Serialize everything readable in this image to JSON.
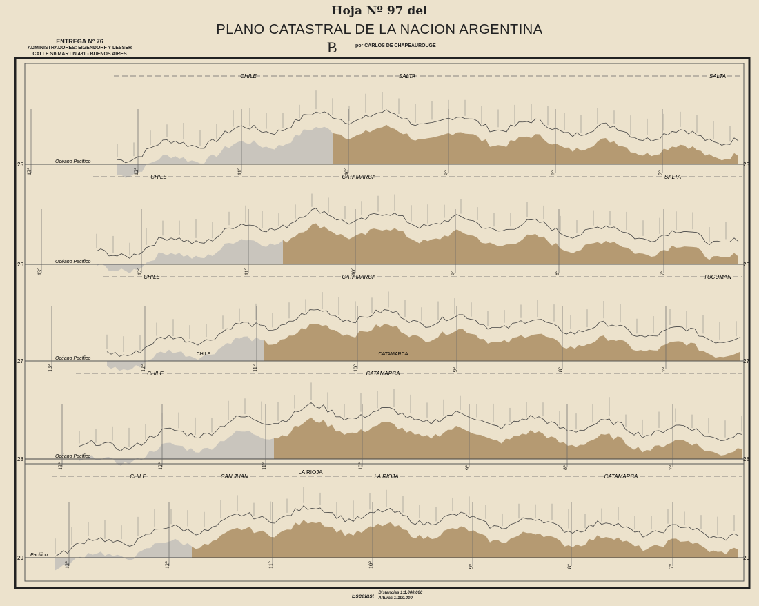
{
  "sheet": {
    "title_line1": "Hoja Nº 97 del",
    "title_line2": "PLANO CATASTRAL DE LA NACION ARGENTINA",
    "series_letter": "B",
    "author": "por CARLOS DE CHAPEAUROUGE",
    "delivery": "ENTREGA Nº 76",
    "administrators": "ADMINISTRADORES: EIGENDORF Y LESSER",
    "address": "CALLE Sn MARTIN 481 - BUENOS AIRES",
    "scale_label": "Escalas:",
    "scale_distances": "Distancias 1:1.000.000",
    "scale_heights": "Alturas 1:100.000"
  },
  "colors": {
    "paper": "#ece2cc",
    "chile": "#c9c5bd",
    "argentina": "#b59a72",
    "ink": "#333333"
  },
  "profiles": [
    {
      "latitude": "25",
      "ocean": "Océano Pacífico",
      "regions": [
        "CHILE",
        "SALTA",
        "SALTA"
      ],
      "longitudes": [
        "13°",
        "12°",
        "11°",
        "10°",
        "9°",
        "8°",
        "7°"
      ]
    },
    {
      "latitude": "26",
      "ocean": "Océano Pacífico",
      "regions": [
        "CHILE",
        "CATAMARCA",
        "SALTA"
      ],
      "longitudes": [
        "13°",
        "12°",
        "11°",
        "10°",
        "9°",
        "8°",
        "7°"
      ]
    },
    {
      "latitude": "27",
      "ocean": "Océano Pacífico",
      "regions": [
        "CHILE",
        "CATAMARCA",
        "TUCUMAN"
      ],
      "inner_labels": [
        "CHILE",
        "CATAMARCA"
      ],
      "longitudes": [
        "13°",
        "12°",
        "11°",
        "10°",
        "9°",
        "8°",
        "7°"
      ]
    },
    {
      "latitude": "28",
      "ocean": "Océano Pacífico",
      "regions": [
        "CHILE",
        "CATAMARCA"
      ],
      "below_label": "LA RIOJA",
      "longitudes": [
        "13°",
        "12°",
        "11°",
        "10°",
        "9°",
        "8°",
        "7°"
      ]
    },
    {
      "latitude": "29",
      "ocean": "Pacífico",
      "regions": [
        "CHILE",
        "SAN JUAN",
        "LA RIOJA",
        "CATAMARCA"
      ],
      "longitudes": [
        "13°",
        "12°",
        "11°",
        "10°",
        "9°",
        "8°",
        "7°"
      ]
    }
  ]
}
